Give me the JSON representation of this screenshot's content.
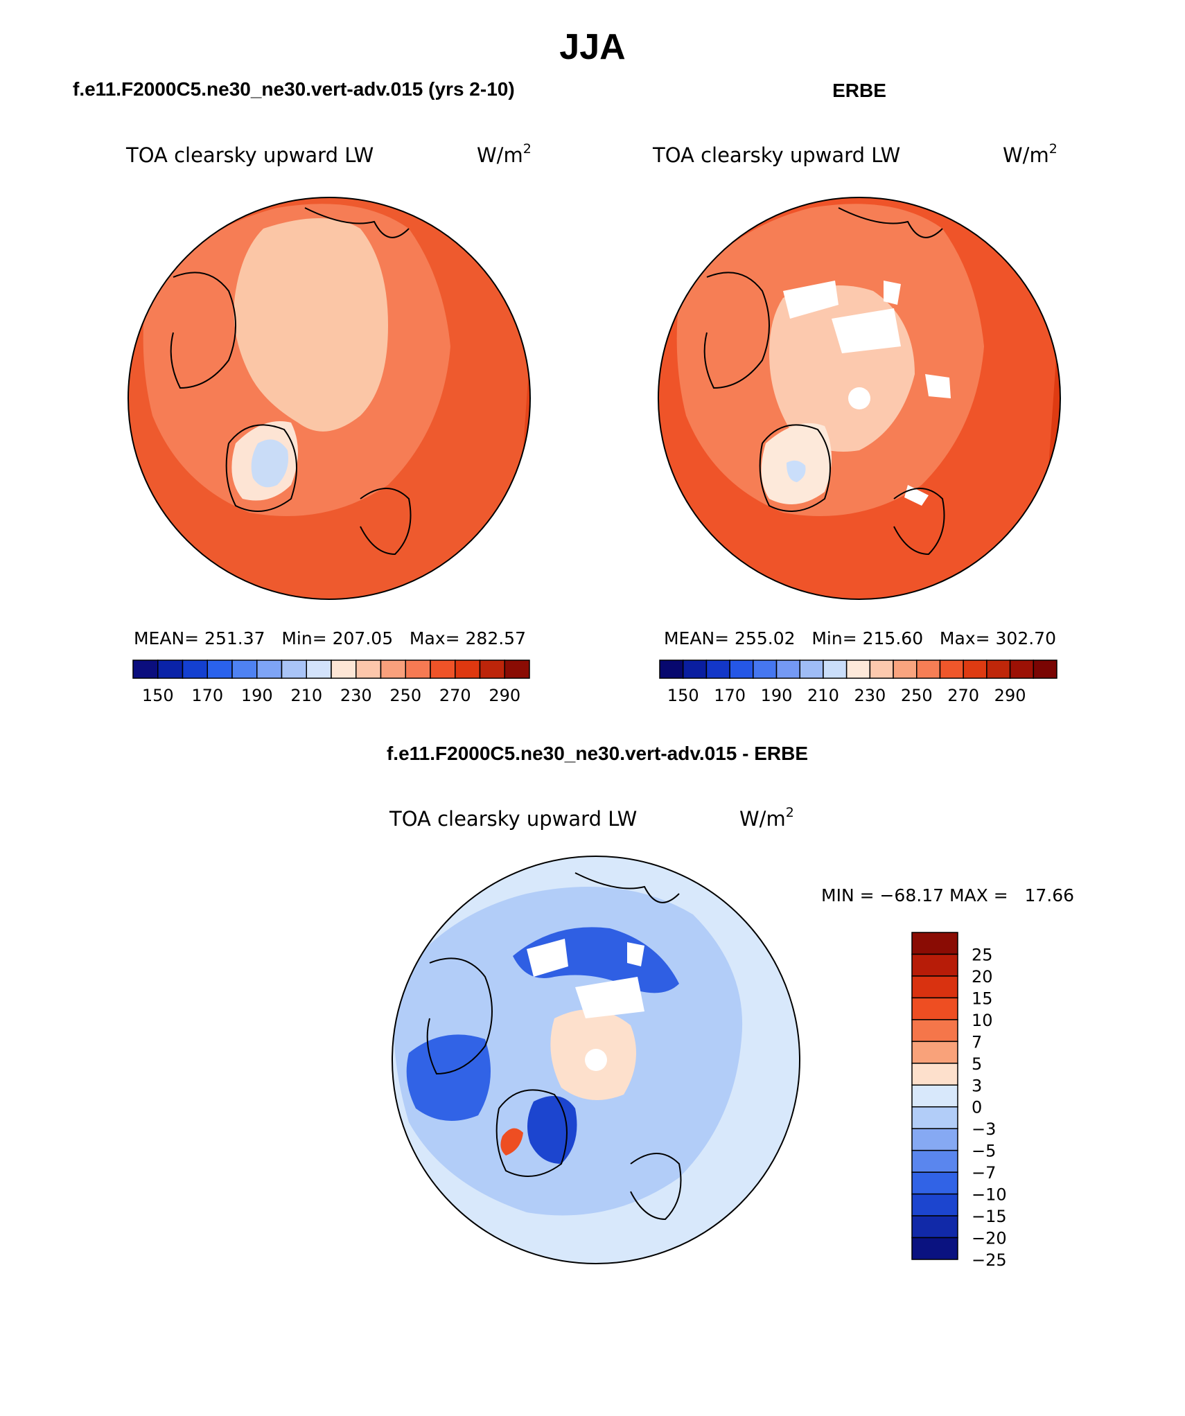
{
  "page": {
    "title": "JJA"
  },
  "panels": [
    {
      "id": "model",
      "heading": "f.e11.F2000C5.ne30_ne30.vert-adv.015 (yrs 2-10)",
      "variable": "TOA clearsky upward LW",
      "units": "W/m",
      "units_sup": "2",
      "stats": "MEAN= 251.37   Min= 207.05   Max= 282.57",
      "colorbar": {
        "colors": [
          "#0b0e7e",
          "#0a23a8",
          "#1440d0",
          "#2a62ec",
          "#4f82f2",
          "#7ea4f6",
          "#a9c4f7",
          "#d3e3fb",
          "#fde6d6",
          "#fcc6ab",
          "#f9a07c",
          "#f67a53",
          "#ef5328",
          "#de3810",
          "#bd250a",
          "#8a0c04"
        ],
        "tick_labels": [
          "150",
          "170",
          "190",
          "210",
          "230",
          "250",
          "270",
          "290"
        ]
      }
    },
    {
      "id": "obs",
      "heading": "ERBE",
      "variable": "TOA clearsky upward LW",
      "units": "W/m",
      "units_sup": "2",
      "stats": "MEAN= 255.02   Min= 215.60   Max= 302.70",
      "colorbar": {
        "colors": [
          "#07086e",
          "#0a1ea0",
          "#1337c8",
          "#2557e6",
          "#4677f0",
          "#7499f4",
          "#9fbcf6",
          "#cadefa",
          "#fde9da",
          "#fcc9ae",
          "#f9a47f",
          "#f67e55",
          "#ef572b",
          "#de3b12",
          "#bf270a",
          "#9c1105",
          "#7a0503"
        ],
        "tick_labels": [
          "150",
          "170",
          "190",
          "210",
          "230",
          "250",
          "270",
          "290"
        ]
      }
    },
    {
      "id": "diff",
      "heading": "f.e11.F2000C5.ne30_ne30.vert-adv.015 - ERBE",
      "variable": "TOA clearsky upward LW",
      "units": "W/m",
      "units_sup": "2",
      "minmax": "MIN = −68.17 MAX =   17.66",
      "colorbar": {
        "colors": [
          "#8a0c04",
          "#b71c08",
          "#d93210",
          "#ee4e22",
          "#f5764a",
          "#f9a27a",
          "#fde0cc",
          "#d8e8fb",
          "#b2cdf8",
          "#86a9f3",
          "#5a86ee",
          "#3163e6",
          "#1c45cf",
          "#1129a8",
          "#0a1280"
        ],
        "tick_labels": [
          "25",
          "20",
          "15",
          "10",
          "7",
          "5",
          "3",
          "0",
          "−3",
          "−5",
          "−7",
          "−10",
          "−15",
          "−20",
          "−25"
        ]
      }
    }
  ]
}
